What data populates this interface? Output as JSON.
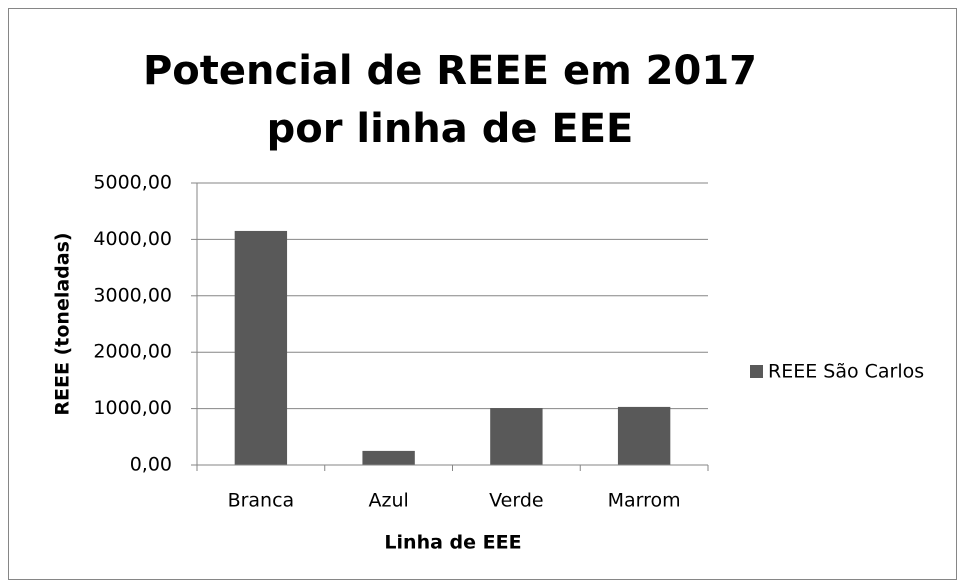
{
  "chart_data": {
    "type": "bar",
    "title": "Potencial de REEE em 2017 por linha de EEE",
    "x_label": "Linha de EEE",
    "y_label": "REEE (toneladas)",
    "categories": [
      "Branca",
      "Azul",
      "Verde",
      "Marrom"
    ],
    "series": [
      {
        "name": "REEE São Carlos",
        "color": "#595959",
        "values": [
          4150,
          250,
          1010,
          1030
        ]
      }
    ],
    "ylim": [
      0,
      5000
    ],
    "yticks": [
      {
        "value": 0,
        "label": "0,00"
      },
      {
        "value": 1000,
        "label": "1000,00"
      },
      {
        "value": 2000,
        "label": "2000,00"
      },
      {
        "value": 3000,
        "label": "3000,00"
      },
      {
        "value": 4000,
        "label": "4000,00"
      },
      {
        "value": 5000,
        "label": "5000,00"
      }
    ],
    "grid": true,
    "legend": "right"
  }
}
